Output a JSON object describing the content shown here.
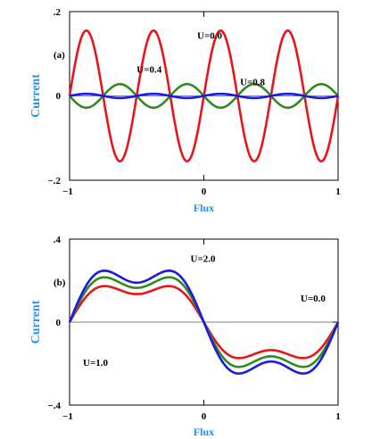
{
  "chart_data": [
    {
      "type": "line",
      "panel_label": "(a)",
      "xlabel": "Flux",
      "ylabel": "Current",
      "xlim": [
        -1,
        1
      ],
      "ylim": [
        -0.2,
        0.2
      ],
      "xticks": [
        -1,
        0,
        1
      ],
      "xtick_labels": [
        "−1",
        "0",
        "1"
      ],
      "yticks": [
        -0.2,
        0,
        0.2
      ],
      "ytick_labels": [
        "−.2",
        "0",
        ".2"
      ],
      "grid": false,
      "series": [
        {
          "name": "U=0.0",
          "color": "#e8161a",
          "amplitude": 0.155,
          "harmonic": 4,
          "phase": 0.0
        },
        {
          "name": "U=0.4",
          "color": "#2f8a1f",
          "amplitude": 0.028,
          "harmonic": 4,
          "phase": 0.5
        },
        {
          "name": "U=0.8",
          "color": "#1a1ae6",
          "amplitude": 0.005,
          "harmonic": 4,
          "phase": 0.0
        }
      ],
      "annotations": [
        {
          "text": "U=0.0",
          "x": -0.05,
          "y": 0.135
        },
        {
          "text": "U=0.4",
          "x": -0.5,
          "y": 0.055
        },
        {
          "text": "U=0.8",
          "x": 0.27,
          "y": 0.025
        }
      ]
    },
    {
      "type": "line",
      "panel_label": "(b)",
      "xlabel": "Flux",
      "ylabel": "Current",
      "xlim": [
        -1,
        1
      ],
      "ylim": [
        -0.4,
        0.4
      ],
      "xticks": [
        -1,
        0,
        1
      ],
      "xtick_labels": [
        "−1",
        "0",
        "1"
      ],
      "yticks": [
        -0.4,
        0,
        0.4
      ],
      "ytick_labels": [
        "−.4",
        "0",
        ".4"
      ],
      "grid": false,
      "series": [
        {
          "name": "U=0.0",
          "color": "#e8161a",
          "a1": 0.19,
          "a2": 0.055
        },
        {
          "name": "U=1.0",
          "color": "#2f8a1f",
          "a1": 0.235,
          "a2": 0.07
        },
        {
          "name": "U=2.0",
          "color": "#1a1ae6",
          "a1": 0.27,
          "a2": 0.08
        }
      ],
      "annotations": [
        {
          "text": "U=2.0",
          "x": -0.1,
          "y": 0.29
        },
        {
          "text": "U=0.0",
          "x": 0.72,
          "y": 0.1
        },
        {
          "text": "U=1.0",
          "x": -0.9,
          "y": -0.21
        }
      ]
    }
  ]
}
